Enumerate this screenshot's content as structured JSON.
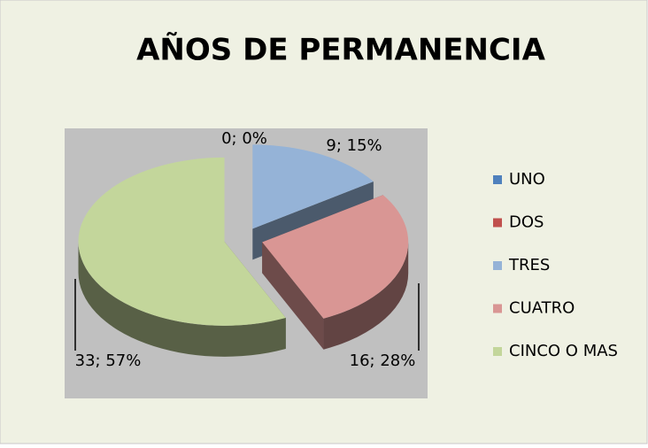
{
  "chart_data": {
    "type": "pie",
    "title": "AÑOS DE PERMANENCIA",
    "categories": [
      "UNO",
      "DOS",
      "TRES",
      "CUATRO",
      "CINCO O MAS"
    ],
    "values": [
      0,
      0,
      9,
      16,
      33
    ],
    "value_labels": [
      "0; 0%",
      null,
      "9; 15%",
      "16; 28%",
      "33; 57%"
    ],
    "colors": [
      "#4f81bd",
      "#c0504d",
      "#95b3d7",
      "#d99694",
      "#c3d69b"
    ],
    "legend": "right"
  }
}
